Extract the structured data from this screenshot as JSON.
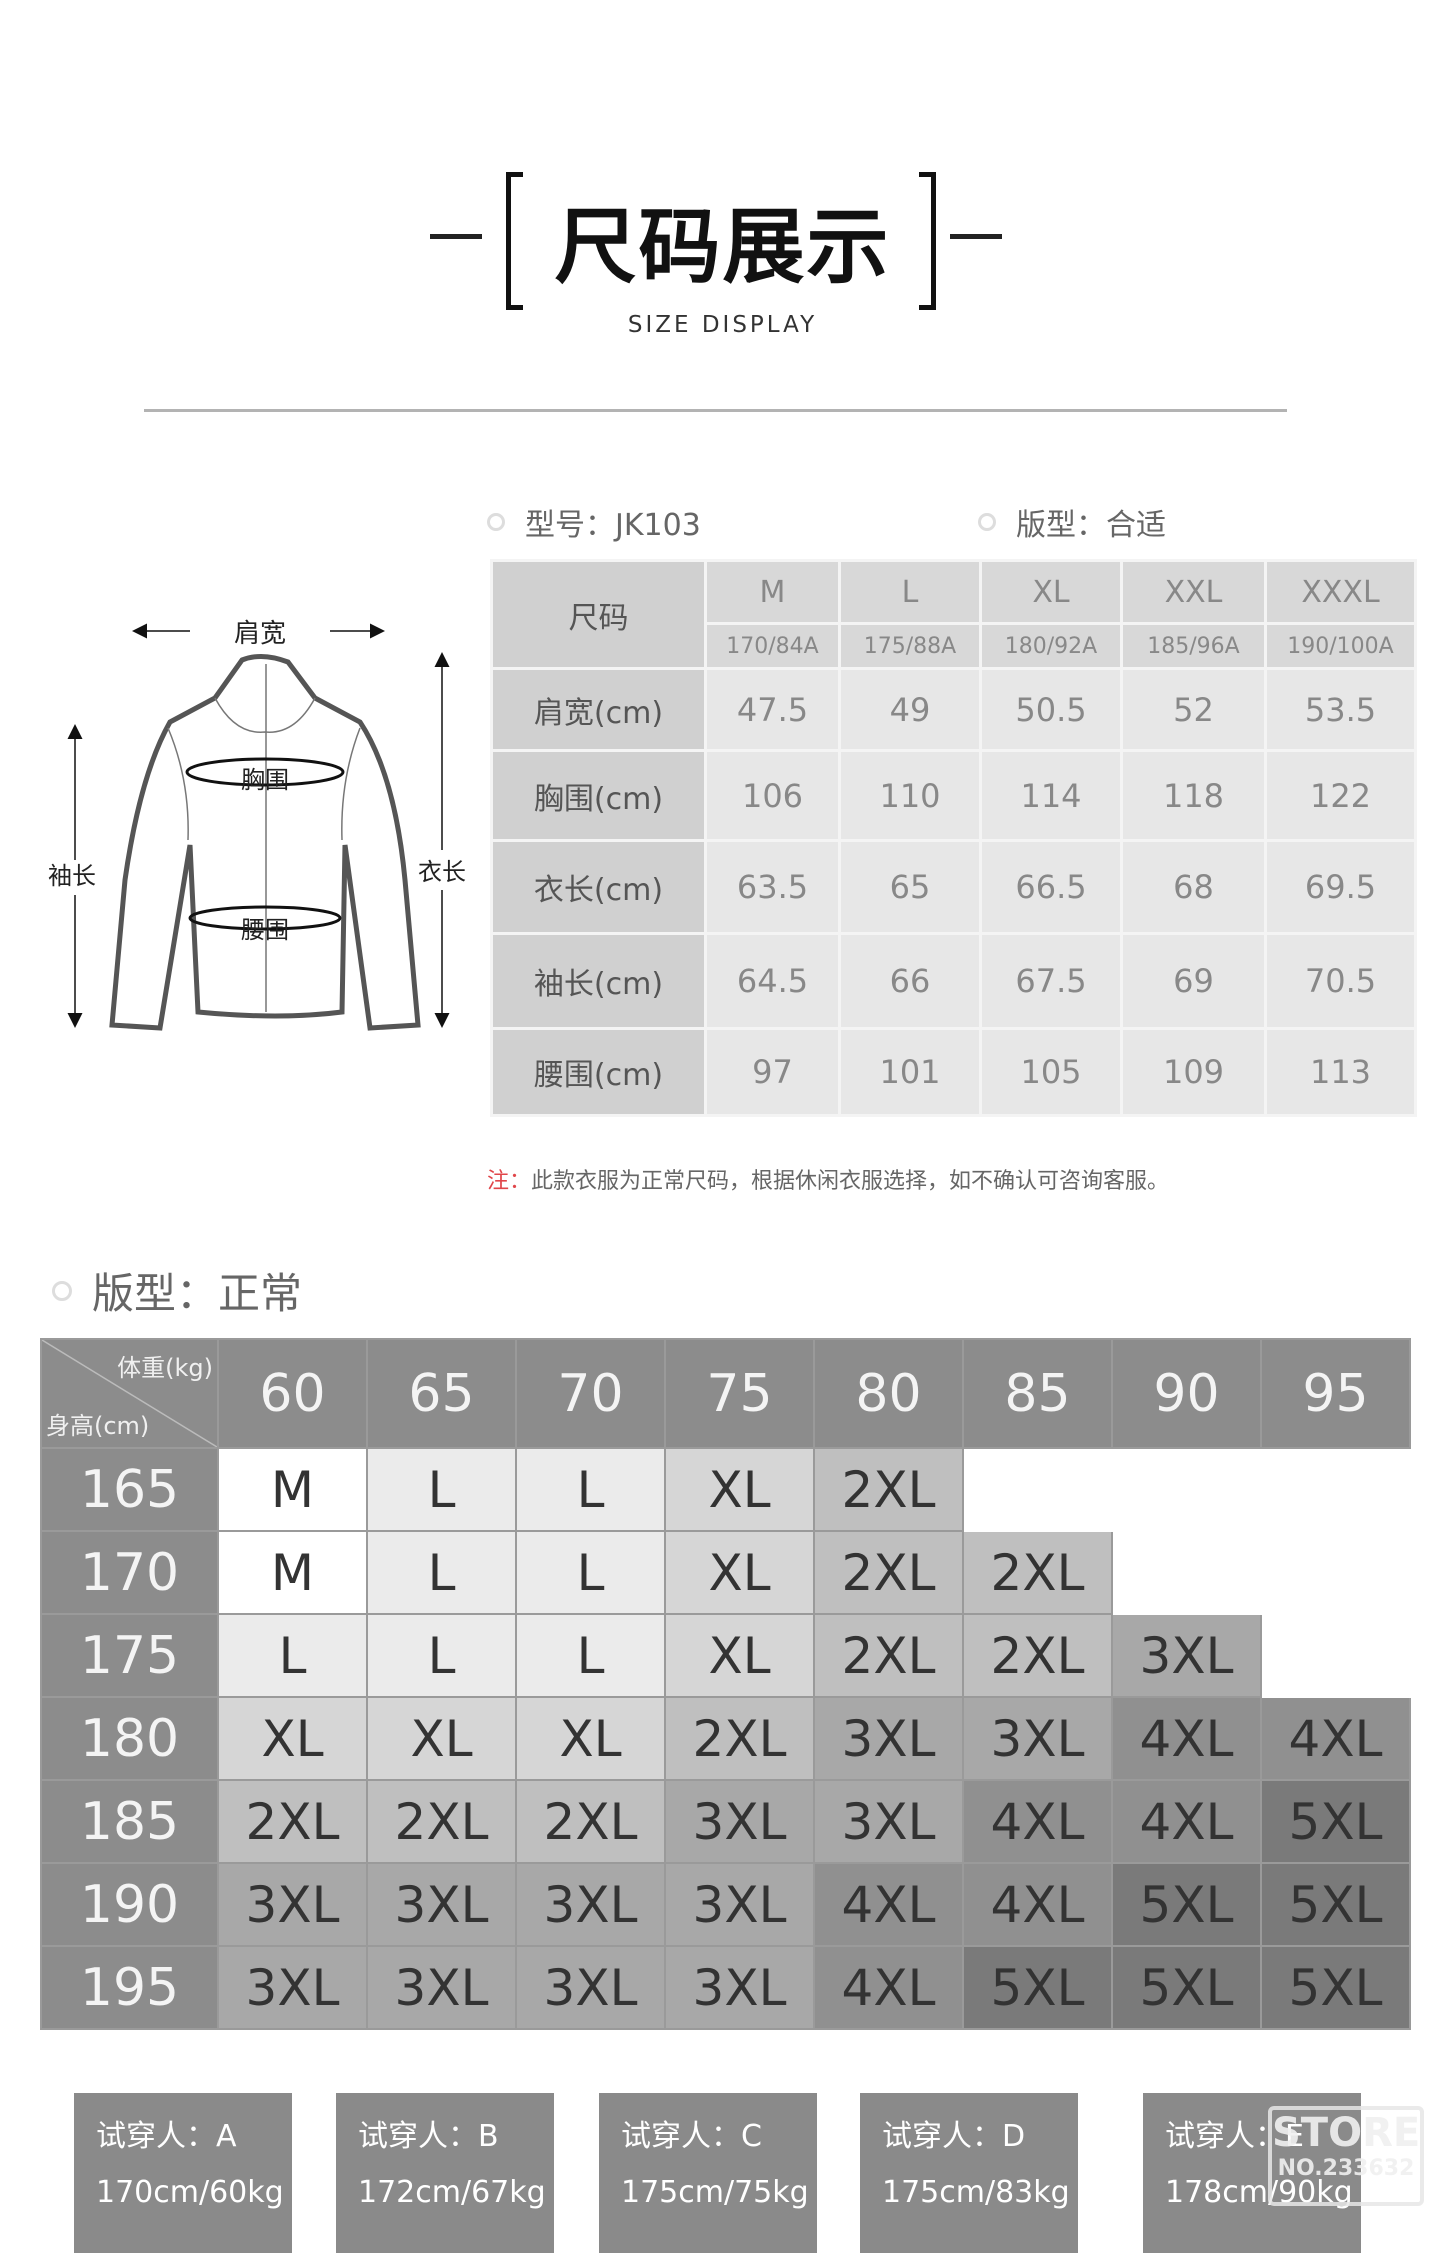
{
  "header": {
    "title": "尺码展示",
    "subtitle": "SIZE DISPLAY"
  },
  "info": {
    "model": "型号：JK103",
    "fit": "版型：合适"
  },
  "diagram": {
    "shoulder": "肩宽",
    "chest": "胸围",
    "waist": "腰围",
    "sleeve": "袖长",
    "length": "衣长"
  },
  "size_table": {
    "corner": "尺码",
    "sizes": [
      {
        "label": "M",
        "spec": "170/84A"
      },
      {
        "label": "L",
        "spec": "175/88A"
      },
      {
        "label": "XL",
        "spec": "180/92A"
      },
      {
        "label": "XXL",
        "spec": "185/96A"
      },
      {
        "label": "XXXL",
        "spec": "190/100A"
      }
    ],
    "rows": [
      {
        "label": "肩宽(cm)",
        "values": [
          "47.5",
          "49",
          "50.5",
          "52",
          "53.5"
        ]
      },
      {
        "label": "胸围(cm)",
        "values": [
          "106",
          "110",
          "114",
          "118",
          "122"
        ]
      },
      {
        "label": "衣长(cm)",
        "values": [
          "63.5",
          "65",
          "66.5",
          "68",
          "69.5"
        ]
      },
      {
        "label": "袖长(cm)",
        "values": [
          "64.5",
          "66",
          "67.5",
          "69",
          "70.5"
        ]
      },
      {
        "label": "腰围(cm)",
        "values": [
          "97",
          "101",
          "105",
          "109",
          "113"
        ]
      }
    ]
  },
  "note": {
    "prefix": "注：",
    "text": "此款衣服为正常尺码，根据休闲衣服选择，如不确认可咨询客服。"
  },
  "fit_section": {
    "title": "版型：正常"
  },
  "size_grid": {
    "weight_label": "体重(kg)",
    "height_label": "身高(cm)",
    "weights": [
      "60",
      "65",
      "70",
      "75",
      "80",
      "85",
      "90",
      "95"
    ],
    "rows": [
      {
        "height": "165",
        "sizes": [
          "M",
          "L",
          "L",
          "XL",
          "2XL",
          null,
          null,
          null
        ]
      },
      {
        "height": "170",
        "sizes": [
          "M",
          "L",
          "L",
          "XL",
          "2XL",
          "2XL",
          null,
          null
        ]
      },
      {
        "height": "175",
        "sizes": [
          "L",
          "L",
          "L",
          "XL",
          "2XL",
          "2XL",
          "3XL",
          null
        ]
      },
      {
        "height": "180",
        "sizes": [
          "XL",
          "XL",
          "XL",
          "2XL",
          "3XL",
          "3XL",
          "4XL",
          "4XL"
        ]
      },
      {
        "height": "185",
        "sizes": [
          "2XL",
          "2XL",
          "2XL",
          "3XL",
          "3XL",
          "4XL",
          "4XL",
          "5XL"
        ]
      },
      {
        "height": "190",
        "sizes": [
          "3XL",
          "3XL",
          "3XL",
          "3XL",
          "4XL",
          "4XL",
          "5XL",
          "5XL"
        ]
      },
      {
        "height": "195",
        "sizes": [
          "3XL",
          "3XL",
          "3XL",
          "3XL",
          "4XL",
          "5XL",
          "5XL",
          "5XL"
        ]
      }
    ],
    "colors": {
      "M": "#ffffff",
      "L": "#ebebeb",
      "XL": "#d6d6d6",
      "2XL": "#bfbfbf",
      "3XL": "#a8a8a8",
      "4XL": "#909090",
      "5XL": "#7a7a7a"
    }
  },
  "testers": [
    {
      "name": "试穿人：A",
      "measure": "170cm/60kg"
    },
    {
      "name": "试穿人：B",
      "measure": "172cm/67kg"
    },
    {
      "name": "试穿人：C",
      "measure": "175cm/75kg"
    },
    {
      "name": "试穿人：D",
      "measure": "175cm/83kg"
    },
    {
      "name": "试穿人：E",
      "measure": "178cm/90kg"
    }
  ],
  "watermark": {
    "line1": "STORE",
    "line2": "NO.233632"
  }
}
